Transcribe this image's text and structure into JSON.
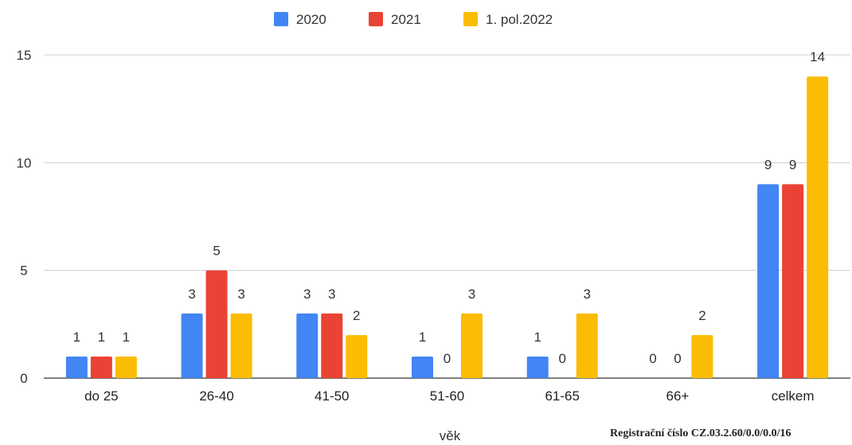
{
  "chart_data": {
    "type": "bar",
    "categories": [
      "do 25",
      "26-40",
      "41-50",
      "51-60",
      "61-65",
      "66+",
      "celkem"
    ],
    "series": [
      {
        "name": "2020",
        "color": "#4285f4",
        "values": [
          1,
          3,
          3,
          1,
          1,
          0,
          9
        ]
      },
      {
        "name": "2021",
        "color": "#ea4335",
        "values": [
          1,
          5,
          3,
          0,
          0,
          0,
          9
        ]
      },
      {
        "name": "1. pol.2022",
        "color": "#fbbc04",
        "values": [
          1,
          3,
          2,
          3,
          3,
          2,
          14
        ]
      }
    ],
    "xlabel": "věk",
    "ylabel": "",
    "ylim": [
      0,
      15
    ],
    "yticks": [
      0,
      5,
      10,
      15
    ],
    "grid": "horizontal",
    "legend_position": "top-center",
    "data_labels": true
  },
  "footer_text": "Registrační číslo CZ.03.2.60/0.0/0.0/16"
}
